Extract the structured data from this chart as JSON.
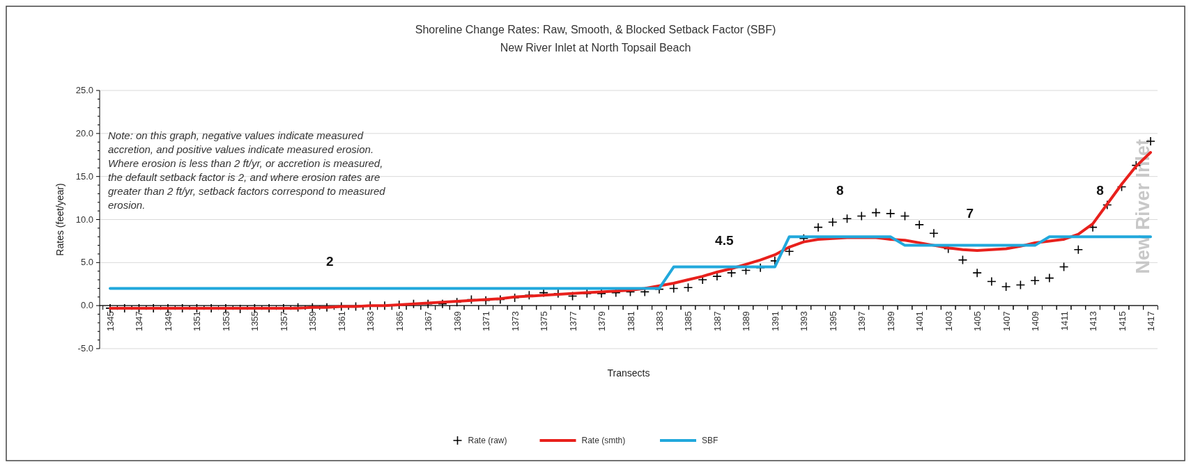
{
  "chart_data": {
    "type": "line",
    "title": "Shoreline Change Rates: Raw, Smooth, & Blocked Setback Factor (SBF)",
    "subtitle": "New River Inlet at North  Topsail Beach",
    "xlabel": "Transects",
    "ylabel": "Rates (feet/year)",
    "categories": [
      "1345",
      null,
      "1347",
      null,
      "1349",
      null,
      "1351",
      null,
      "1353",
      null,
      "1355",
      null,
      "1357",
      null,
      "1359",
      null,
      "1361",
      null,
      "1363",
      null,
      "1365",
      null,
      "1367",
      null,
      "1369",
      null,
      "1371",
      null,
      "1373",
      null,
      "1375",
      null,
      "1377",
      null,
      "1379",
      null,
      "1381",
      null,
      "1383",
      null,
      "1385",
      null,
      "1387",
      null,
      "1389",
      null,
      "1391",
      null,
      "1393",
      null,
      "1395",
      null,
      "1397",
      null,
      "1399",
      null,
      "1401",
      null,
      "1403",
      null,
      "1405",
      null,
      "1407",
      null,
      "1409",
      null,
      "1411",
      null,
      "1413",
      null,
      "1415",
      null,
      "1417"
    ],
    "series": [
      {
        "name": "Rate (raw)",
        "type": "scatter",
        "marker": "cross",
        "color": "#000000",
        "values": [
          -0.3,
          -0.3,
          -0.3,
          -0.3,
          -0.3,
          -0.3,
          -0.3,
          -0.3,
          -0.3,
          -0.4,
          -0.3,
          -0.3,
          -0.3,
          -0.2,
          -0.2,
          -0.2,
          -0.1,
          -0.1,
          0.0,
          0.0,
          0.1,
          0.2,
          0.2,
          0.2,
          0.4,
          0.7,
          0.6,
          0.7,
          0.9,
          1.2,
          1.5,
          1.4,
          1.1,
          1.4,
          1.4,
          1.5,
          1.6,
          1.6,
          1.9,
          2.0,
          2.1,
          3.0,
          3.4,
          3.8,
          4.1,
          4.4,
          5.2,
          6.3,
          7.8,
          9.1,
          9.7,
          10.1,
          10.4,
          10.8,
          10.7,
          10.4,
          9.4,
          8.4,
          6.6,
          5.3,
          3.8,
          2.8,
          2.2,
          2.4,
          2.9,
          3.2,
          4.5,
          6.5,
          9.1,
          11.7,
          13.8,
          16.3,
          19.1
        ]
      },
      {
        "name": "Rate (smth)",
        "color": "#e8201c",
        "values": [
          -0.3,
          -0.3,
          -0.3,
          -0.3,
          -0.3,
          -0.3,
          -0.3,
          -0.3,
          -0.3,
          -0.3,
          -0.3,
          -0.3,
          -0.3,
          -0.3,
          -0.2,
          -0.2,
          -0.1,
          -0.1,
          0.0,
          0.0,
          0.1,
          0.2,
          0.3,
          0.4,
          0.5,
          0.6,
          0.7,
          0.8,
          1.0,
          1.1,
          1.2,
          1.3,
          1.4,
          1.5,
          1.6,
          1.7,
          1.8,
          2.0,
          2.3,
          2.6,
          3.0,
          3.4,
          3.9,
          4.3,
          4.8,
          5.3,
          5.9,
          6.8,
          7.4,
          7.7,
          7.8,
          7.9,
          7.9,
          7.9,
          7.7,
          7.6,
          7.3,
          7.0,
          6.7,
          6.5,
          6.4,
          6.5,
          6.6,
          6.9,
          7.3,
          7.5,
          7.7,
          8.3,
          9.5,
          11.8,
          14.1,
          16.2,
          17.8
        ]
      },
      {
        "name": "SBF",
        "color": "#21a8dc",
        "values": [
          2,
          2,
          2,
          2,
          2,
          2,
          2,
          2,
          2,
          2,
          2,
          2,
          2,
          2,
          2,
          2,
          2,
          2,
          2,
          2,
          2,
          2,
          2,
          2,
          2,
          2,
          2,
          2,
          2,
          2,
          2,
          2,
          2,
          2,
          2,
          2,
          2,
          2,
          2,
          4.5,
          4.5,
          4.5,
          4.5,
          4.5,
          4.5,
          4.5,
          4.5,
          8,
          8,
          8,
          8,
          8,
          8,
          8,
          8,
          7,
          7,
          7,
          7,
          7,
          7,
          7,
          7,
          7,
          7,
          8,
          8,
          8,
          8,
          8,
          8,
          8,
          8
        ]
      }
    ],
    "ylim": [
      -5,
      25
    ],
    "yticks": [
      {
        "value": -5,
        "label": "-5.0"
      },
      {
        "value": 0,
        "label": "0.0"
      },
      {
        "value": 5,
        "label": "5.0"
      },
      {
        "value": 10,
        "label": "10.0"
      },
      {
        "value": 15,
        "label": "15.0"
      },
      {
        "value": 20,
        "label": "20.0"
      },
      {
        "value": 25,
        "label": "25.0"
      }
    ],
    "grid": "y",
    "legend": "bottom",
    "annotations": [
      "Note: on this graph, negative values indicate measured accretion, and positive values indicate measured erosion. Where erosion is less than 2 ft/yr, or accretion is measured, the default setback factor is 2, and where erosion rates are greater than 2 ft/yr, setback factors correspond to measured erosion.",
      "New River Inlet",
      "2",
      "4.5",
      "8",
      "7",
      "8"
    ]
  }
}
